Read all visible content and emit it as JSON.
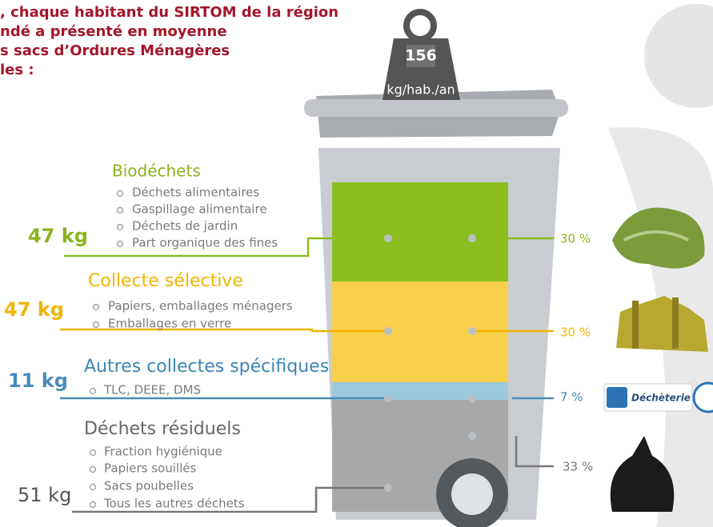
{
  "header": {
    "lines": [
      ", chaque habitant du SIRTOM de la région",
      "ndé a présenté en moyenne",
      "s sacs d’Ordures Ménagères",
      "les :"
    ]
  },
  "weight": {
    "value": "156",
    "unit": "kg/hab./an"
  },
  "categories": [
    {
      "title": "Biodéchets",
      "items": [
        "Déchets alimentaires",
        "Gaspillage alimentaire",
        "Déchets de jardin",
        "Part organique des fines"
      ],
      "amount": "47 kg",
      "share": "30 %"
    },
    {
      "title": "Collecte sélective",
      "items": [
        "Papiers, emballages ménagers",
        "Emballages en verre"
      ],
      "amount": "47 kg",
      "share": "30 %"
    },
    {
      "title": "Autres collectes spécifiques",
      "items": [
        "TLC, DEEE, DMS"
      ],
      "amount": "11 kg",
      "share": "7 %"
    },
    {
      "title": "Déchets résiduels",
      "items": [
        "Fraction hygiénique",
        "Papiers souillés",
        "Sacs poubelles",
        "Tous les autres déchets"
      ],
      "amount": "51 kg",
      "share": "33 %"
    }
  ],
  "badge": "Déchèterie"
}
